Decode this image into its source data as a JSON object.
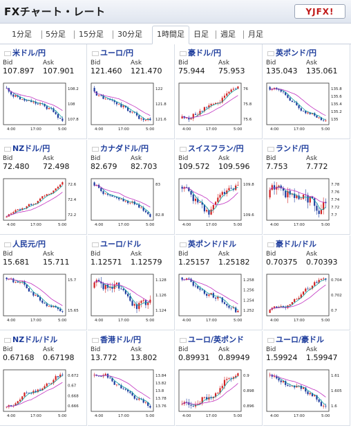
{
  "header": {
    "title": "FXチャート・レート",
    "logo_text": "YJFX!"
  },
  "tabs": [
    "1分足",
    "5分足",
    "15分足",
    "30分足",
    "1時間足",
    "日足",
    "週足",
    "月足"
  ],
  "active_tab": "1時間足",
  "labels": {
    "bid": "Bid",
    "ask": "Ask"
  },
  "x_ticks": [
    "4:00",
    "17:00",
    "5:00"
  ],
  "pairs": [
    {
      "name": "米ドル/円",
      "flag": "us",
      "bid": "107.897",
      "ask": "107.901",
      "y_ticks": [
        "108.2",
        "108",
        "107.8"
      ],
      "trend": "down"
    },
    {
      "name": "ユーロ/円",
      "flag": "eu",
      "bid": "121.460",
      "ask": "121.470",
      "y_ticks": [
        "122",
        "121.8",
        "121.6"
      ],
      "trend": "down"
    },
    {
      "name": "豪ドル/円",
      "flag": "au",
      "bid": "75.944",
      "ask": "75.953",
      "y_ticks": [
        "76",
        "75.8",
        "75.6"
      ],
      "trend": "up"
    },
    {
      "name": "英ポンド/円",
      "flag": "gb",
      "bid": "135.043",
      "ask": "135.061",
      "y_ticks": [
        "135.8",
        "135.6",
        "135.4",
        "135.2",
        "135"
      ],
      "trend": "down"
    },
    {
      "name": "NZドル/円",
      "flag": "nz",
      "bid": "72.480",
      "ask": "72.498",
      "y_ticks": [
        "72.6",
        "72.4",
        "72.2"
      ],
      "trend": "up"
    },
    {
      "name": "カナダドル/円",
      "flag": "ca",
      "bid": "82.679",
      "ask": "82.703",
      "y_ticks": [
        "83",
        "82.8"
      ],
      "trend": "down"
    },
    {
      "name": "スイスフラン/円",
      "flag": "ch",
      "bid": "109.572",
      "ask": "109.596",
      "y_ticks": [
        "109.8",
        "109.6"
      ],
      "trend": "updown"
    },
    {
      "name": "ランド/円",
      "flag": "za",
      "bid": "7.753",
      "ask": "7.772",
      "y_ticks": [
        "7.78",
        "7.76",
        "7.74",
        "7.72",
        "7.7"
      ],
      "trend": "flat"
    },
    {
      "name": "人民元/円",
      "flag": "cn",
      "bid": "15.681",
      "ask": "15.711",
      "y_ticks": [
        "15.7",
        "15.65"
      ],
      "trend": "down"
    },
    {
      "name": "ユーロ/ドル",
      "flag": "eu",
      "bid": "1.12571",
      "ask": "1.12579",
      "y_ticks": [
        "1.128",
        "1.126",
        "1.124"
      ],
      "trend": "flat"
    },
    {
      "name": "英ポンド/ドル",
      "flag": "gb",
      "bid": "1.25157",
      "ask": "1.25182",
      "y_ticks": [
        "1.258",
        "1.256",
        "1.254",
        "1.252"
      ],
      "trend": "down"
    },
    {
      "name": "豪ドル/ドル",
      "flag": "au",
      "bid": "0.70375",
      "ask": "0.70393",
      "y_ticks": [
        "0.704",
        "0.702",
        "0.7"
      ],
      "trend": "up"
    },
    {
      "name": "NZドル/ドル",
      "flag": "nz",
      "bid": "0.67168",
      "ask": "0.67198",
      "y_ticks": [
        "0.672",
        "0.67",
        "0.668",
        "0.666"
      ],
      "trend": "up"
    },
    {
      "name": "香港ドル/円",
      "flag": "hk",
      "bid": "13.772",
      "ask": "13.802",
      "y_ticks": [
        "13.84",
        "13.82",
        "13.8",
        "13.78",
        "13.76"
      ],
      "trend": "down"
    },
    {
      "name": "ユーロ/英ポンド",
      "flag": "eu",
      "bid": "0.89931",
      "ask": "0.89949",
      "y_ticks": [
        "0.9",
        "0.898",
        "0.896"
      ],
      "trend": "up"
    },
    {
      "name": "ユーロ/豪ドル",
      "flag": "eu",
      "bid": "1.59924",
      "ask": "1.59947",
      "y_ticks": [
        "1.61",
        "1.605",
        "1.6"
      ],
      "trend": "down"
    }
  ],
  "colors": {
    "up": "#d22222",
    "down": "#1e3c9e",
    "ma_short": "#0aa0a0",
    "ma_long": "#c030c0",
    "pair_text": "#1e3d9c"
  }
}
